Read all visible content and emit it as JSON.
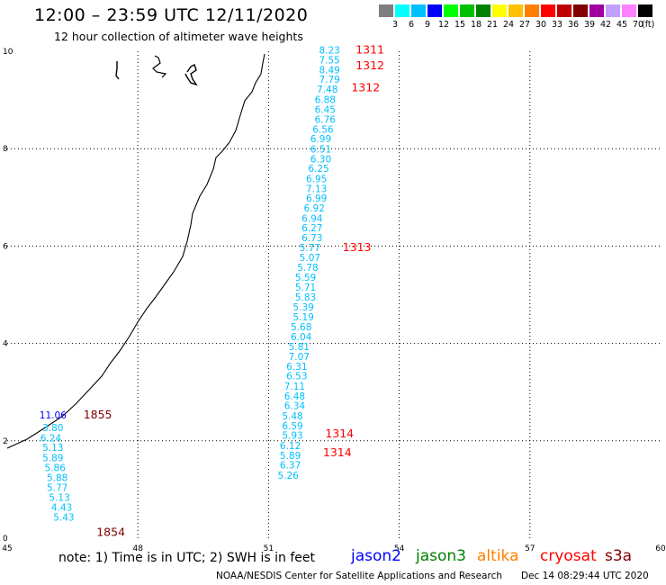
{
  "title": "12:00 – 23:59 UTC 12/11/2020",
  "subtitle": "12 hour collection of altimeter wave heights",
  "scale": {
    "ticks": [
      "3",
      "6",
      "9",
      "12",
      "15",
      "18",
      "21",
      "24",
      "27",
      "30",
      "33",
      "36",
      "39",
      "42",
      "45",
      "70"
    ],
    "unit": "(ft)",
    "colors": [
      "#7f7f7f",
      "#00ffff",
      "#00bfff",
      "#0000ff",
      "#00ff00",
      "#00c000",
      "#008000",
      "#ffff00",
      "#ffc000",
      "#ff8000",
      "#ff0000",
      "#c00000",
      "#800000",
      "#a000a0",
      "#c0a0ff",
      "#ff80ff",
      "#000000"
    ]
  },
  "axes": {
    "lon_ticks": [
      "45",
      "48",
      "51",
      "54",
      "57",
      "60"
    ],
    "lat_ticks": [
      "0",
      "2",
      "4",
      "6",
      "8",
      "10"
    ]
  },
  "tracks": [
    {
      "satellite": "cryosat",
      "color": "#00bfff",
      "times": [
        {
          "label": "1311",
          "lon": 53.0,
          "lat": 9.95
        },
        {
          "label": "1312",
          "lon": 53.0,
          "lat": 9.63
        },
        {
          "label": "1312",
          "lon": 52.9,
          "lat": 9.18
        },
        {
          "label": "1313",
          "lon": 52.7,
          "lat": 5.9
        },
        {
          "label": "1314",
          "lon": 52.3,
          "lat": 2.07
        },
        {
          "label": "1314",
          "lon": 52.25,
          "lat": 1.68
        }
      ],
      "points": [
        {
          "value": "8.23",
          "lon": 52.4,
          "lat": 9.95
        },
        {
          "value": "7.55",
          "lon": 52.4,
          "lat": 9.75
        },
        {
          "value": "8.49",
          "lon": 52.4,
          "lat": 9.55
        },
        {
          "value": "7.79",
          "lon": 52.4,
          "lat": 9.35
        },
        {
          "value": "7.48",
          "lon": 52.35,
          "lat": 9.15
        },
        {
          "value": "6.88",
          "lon": 52.3,
          "lat": 8.94
        },
        {
          "value": "6.45",
          "lon": 52.3,
          "lat": 8.73
        },
        {
          "value": "6.76",
          "lon": 52.3,
          "lat": 8.53
        },
        {
          "value": "6.56",
          "lon": 52.25,
          "lat": 8.33
        },
        {
          "value": "6.99",
          "lon": 52.2,
          "lat": 8.13
        },
        {
          "value": "6.51",
          "lon": 52.2,
          "lat": 7.92
        },
        {
          "value": "6.30",
          "lon": 52.2,
          "lat": 7.72
        },
        {
          "value": "6.25",
          "lon": 52.15,
          "lat": 7.52
        },
        {
          "value": "6.95",
          "lon": 52.1,
          "lat": 7.31
        },
        {
          "value": "7.13",
          "lon": 52.1,
          "lat": 7.11
        },
        {
          "value": "6.99",
          "lon": 52.1,
          "lat": 6.91
        },
        {
          "value": "6.92",
          "lon": 52.05,
          "lat": 6.71
        },
        {
          "value": "6.94",
          "lon": 52.0,
          "lat": 6.5
        },
        {
          "value": "6.27",
          "lon": 52.0,
          "lat": 6.3
        },
        {
          "value": "6.73",
          "lon": 52.0,
          "lat": 6.1
        },
        {
          "value": "5.77",
          "lon": 51.95,
          "lat": 5.9
        },
        {
          "value": "5.07",
          "lon": 51.95,
          "lat": 5.69
        },
        {
          "value": "5.78",
          "lon": 51.9,
          "lat": 5.49
        },
        {
          "value": "5.59",
          "lon": 51.85,
          "lat": 5.29
        },
        {
          "value": "5.71",
          "lon": 51.85,
          "lat": 5.08
        },
        {
          "value": "5.83",
          "lon": 51.85,
          "lat": 4.88
        },
        {
          "value": "5.39",
          "lon": 51.8,
          "lat": 4.68
        },
        {
          "value": "5.19",
          "lon": 51.8,
          "lat": 4.47
        },
        {
          "value": "5.68",
          "lon": 51.75,
          "lat": 4.27
        },
        {
          "value": "6.04",
          "lon": 51.75,
          "lat": 4.07
        },
        {
          "value": "5.81",
          "lon": 51.7,
          "lat": 3.86
        },
        {
          "value": "7.07",
          "lon": 51.7,
          "lat": 3.66
        },
        {
          "value": "6.31",
          "lon": 51.65,
          "lat": 3.46
        },
        {
          "value": "6.53",
          "lon": 51.65,
          "lat": 3.26
        },
        {
          "value": "7.11",
          "lon": 51.6,
          "lat": 3.05
        },
        {
          "value": "6.48",
          "lon": 51.6,
          "lat": 2.85
        },
        {
          "value": "6.34",
          "lon": 51.6,
          "lat": 2.65
        },
        {
          "value": "5.48",
          "lon": 51.55,
          "lat": 2.44
        },
        {
          "value": "6.59",
          "lon": 51.55,
          "lat": 2.24
        },
        {
          "value": "5.93",
          "lon": 51.55,
          "lat": 2.04
        },
        {
          "value": "6.12",
          "lon": 51.5,
          "lat": 1.83
        },
        {
          "value": "5.89",
          "lon": 51.5,
          "lat": 1.63
        },
        {
          "value": "6.37",
          "lon": 51.5,
          "lat": 1.43
        },
        {
          "value": "5.26",
          "lon": 51.45,
          "lat": 1.22
        }
      ]
    },
    {
      "satellite": "s3a",
      "color": "#00bfff",
      "times": [
        {
          "label": "1855",
          "lon": 46.75,
          "lat": 2.46
        },
        {
          "label": "1854",
          "lon": 47.05,
          "lat": 0.05
        }
      ],
      "points": [
        {
          "value": "11.06",
          "lon": 46.05,
          "lat": 2.46,
          "color": "#0000ff"
        },
        {
          "value": "3.80",
          "lon": 46.05,
          "lat": 2.2
        },
        {
          "value": "6.24",
          "lon": 46.0,
          "lat": 1.99
        },
        {
          "value": "5.13",
          "lon": 46.05,
          "lat": 1.79
        },
        {
          "value": "5.89",
          "lon": 46.05,
          "lat": 1.58
        },
        {
          "value": "5.86",
          "lon": 46.1,
          "lat": 1.38
        },
        {
          "value": "5.88",
          "lon": 46.15,
          "lat": 1.17
        },
        {
          "value": "5.77",
          "lon": 46.15,
          "lat": 0.97
        },
        {
          "value": "5.13",
          "lon": 46.2,
          "lat": 0.77
        },
        {
          "value": "4.43",
          "lon": 46.25,
          "lat": 0.56
        },
        {
          "value": "5.43",
          "lon": 46.3,
          "lat": 0.36
        }
      ]
    }
  ],
  "note": "note:  1) Time is in UTC;  2) SWH is in feet",
  "satellites": [
    {
      "name": "jason2",
      "color": "#0000ff"
    },
    {
      "name": "jason3",
      "color": "#008000"
    },
    {
      "name": "altika",
      "color": "#ff8000"
    },
    {
      "name": "cryosat",
      "color": "#ff0000"
    },
    {
      "name": "s3a",
      "color": "#800000"
    }
  ],
  "credit": "NOAA/NESDIS Center for Satellite Applications and Research",
  "timestamp": "Dec 14 08:29:44 UTC 2020",
  "time_label_colors": {
    "cryosat": "#ff0000",
    "s3a": "#800000"
  }
}
